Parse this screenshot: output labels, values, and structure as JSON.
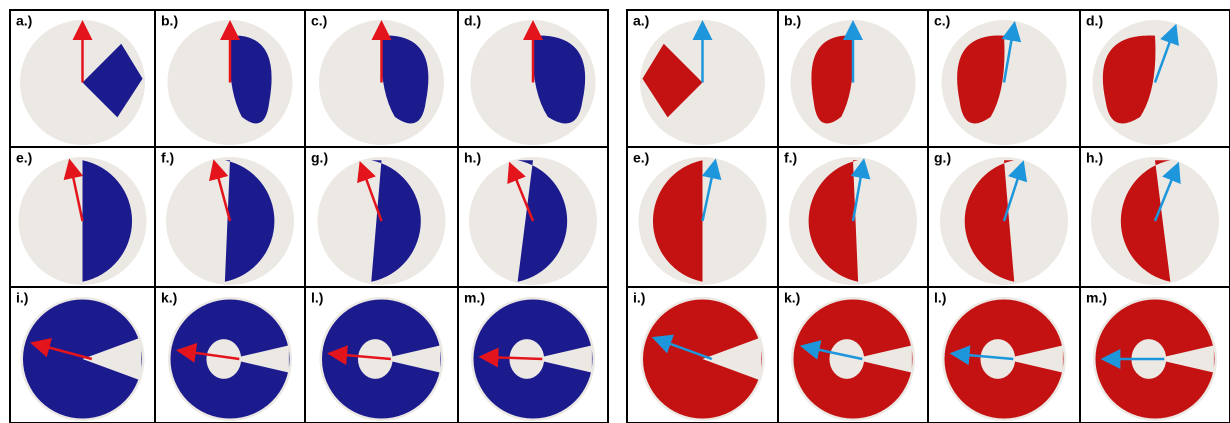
{
  "grids": [
    {
      "panels": [
        "a.)",
        "b.)",
        "c.)",
        "d.)",
        "e.)",
        "f.)",
        "g.)",
        "h.)",
        "i.)",
        "k.)",
        "l.)",
        "m.)"
      ]
    },
    {
      "panels": [
        "a.)",
        "b.)",
        "c.)",
        "d.)",
        "e.)",
        "f.)",
        "g.)",
        "h.)",
        "i.)",
        "k.)",
        "l.)",
        "m.)"
      ]
    }
  ]
}
